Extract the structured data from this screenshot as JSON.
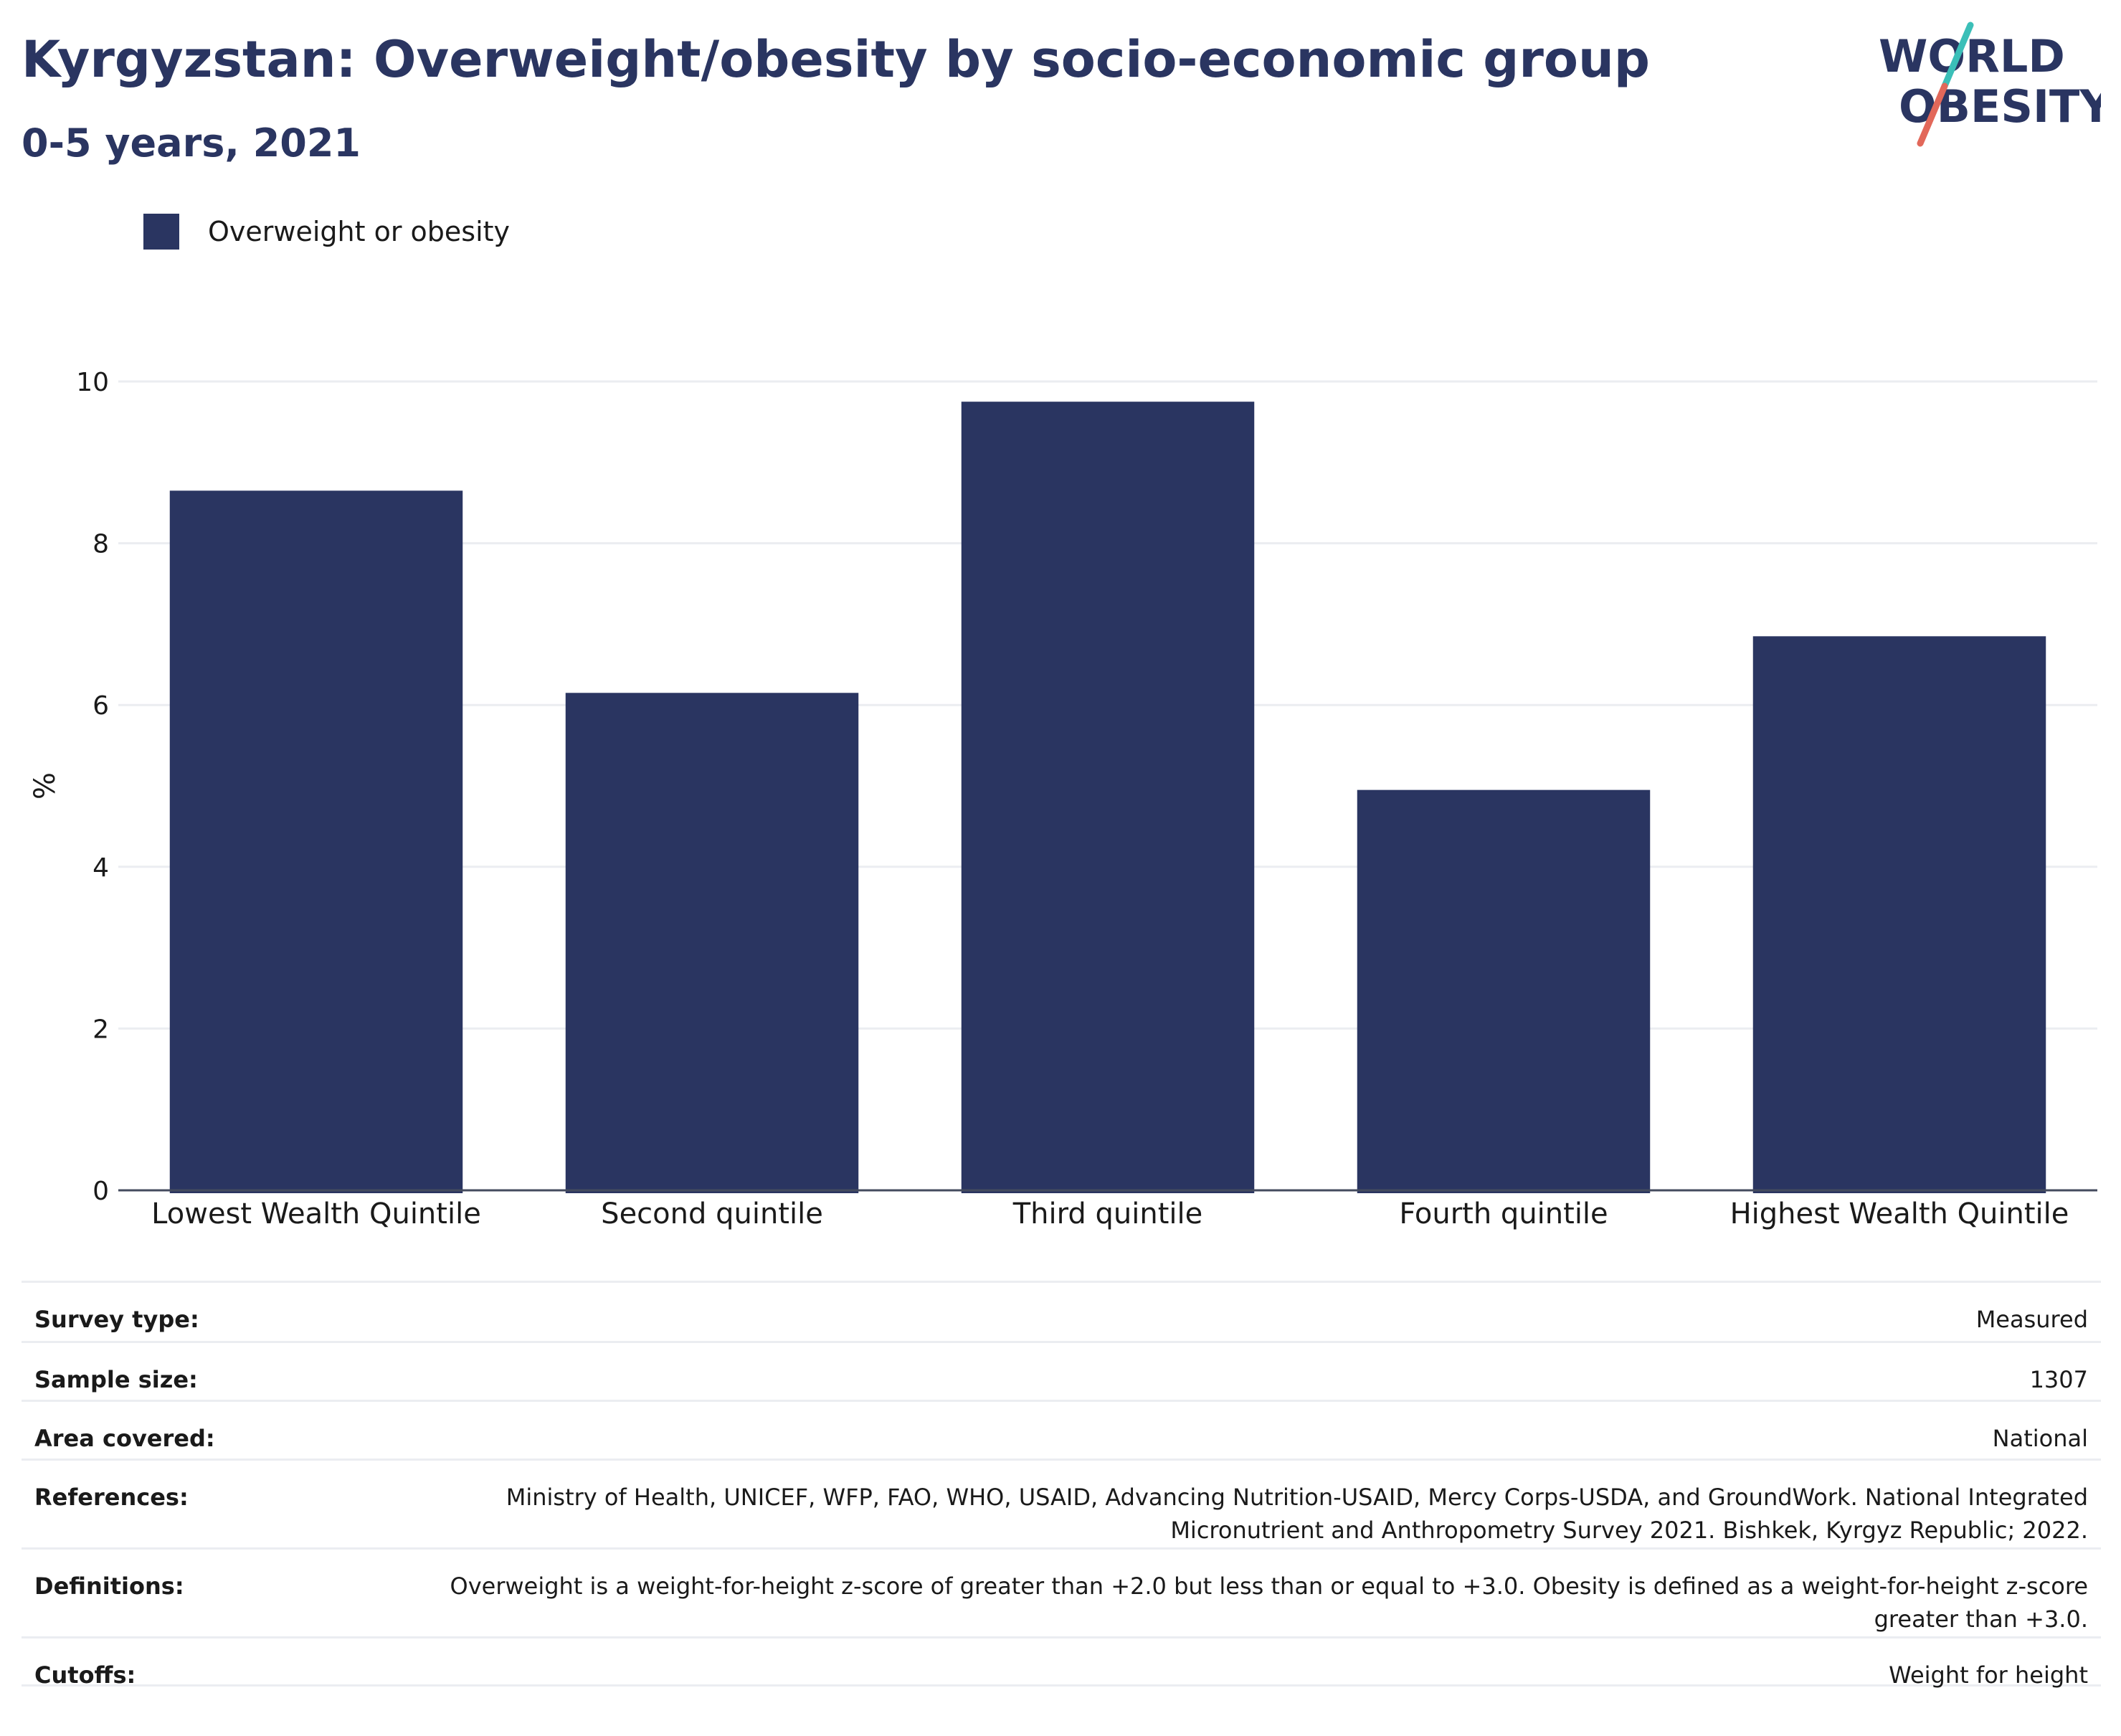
{
  "header": {
    "title": "Kyrgyzstan: Overweight/obesity by socio-economic group",
    "subtitle": "0-5 years, 2021"
  },
  "logo": {
    "line1": "WORLD",
    "line2": "OBESITY",
    "colors": {
      "text": "#2a3561",
      "slash_top": "#3bbfb8",
      "slash_bottom": "#e2685a"
    }
  },
  "legend": {
    "items": [
      {
        "label": "Overweight or obesity",
        "color": "#2a3561"
      }
    ]
  },
  "chart_data": {
    "type": "bar",
    "categories": [
      "Lowest Wealth Quintile",
      "Second quintile",
      "Third quintile",
      "Fourth quintile",
      "Highest Wealth Quintile"
    ],
    "series": [
      {
        "name": "Overweight or obesity",
        "values": [
          8.65,
          6.15,
          9.75,
          4.95,
          6.85
        ],
        "color": "#2a3561"
      }
    ],
    "ylabel": "%",
    "ylim": [
      0,
      10
    ],
    "yticks": [
      "0",
      "2",
      "4",
      "6",
      "8",
      "10"
    ],
    "grid": true,
    "legend_position": "top-left"
  },
  "info": {
    "rows": [
      {
        "label": "Survey type:",
        "value": "Measured"
      },
      {
        "label": "Sample size:",
        "value": "1307"
      },
      {
        "label": "Area covered:",
        "value": "National"
      },
      {
        "label": "References:",
        "value": "Ministry of Health, UNICEF, WFP, FAO, WHO, USAID, Advancing Nutrition-USAID, Mercy Corps-USDA, and GroundWork. National Integrated Micronutrient and Anthropometry Survey 2021. Bishkek, Kyrgyz Republic; 2022."
      },
      {
        "label": "Definitions:",
        "value": "Overweight is a weight-for-height z-score of greater than +2.0 but less than or equal to +3.0. Obesity is defined as a weight-for-height z-score greater than +3.0."
      },
      {
        "label": "Cutoffs:",
        "value": "Weight for height"
      }
    ]
  }
}
